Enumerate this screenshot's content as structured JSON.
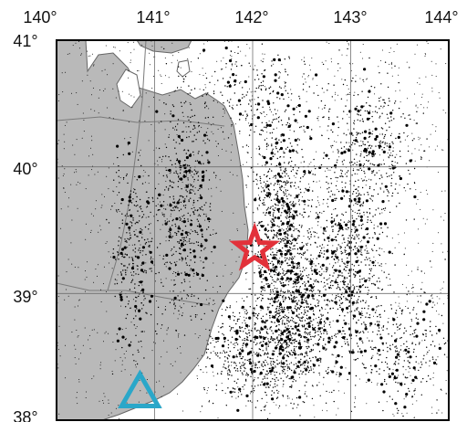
{
  "map": {
    "longitude_labels": [
      "140°",
      "141°",
      "142°",
      "143°",
      "144°"
    ],
    "latitude_labels": [
      "41°",
      "40°",
      "39°",
      "38°"
    ],
    "longitude_values": [
      140,
      141,
      142,
      143,
      144
    ],
    "latitude_values": [
      41,
      40,
      39,
      38
    ],
    "extent": {
      "lon_min": 140,
      "lon_max": 144,
      "lat_min": 38,
      "lat_max": 41
    }
  },
  "markers": {
    "epicenter": {
      "shape": "star",
      "lon": 142.02,
      "lat": 39.35,
      "color": "#e2313a"
    },
    "station": {
      "shape": "triangle",
      "lon": 140.85,
      "lat": 38.22,
      "color": "#2aa7c9"
    }
  },
  "colors": {
    "land": "#b9b9b9",
    "sea": "#ffffff",
    "seismicity": "#000000",
    "grid": "#6f6f6f",
    "frame": "#000000"
  }
}
